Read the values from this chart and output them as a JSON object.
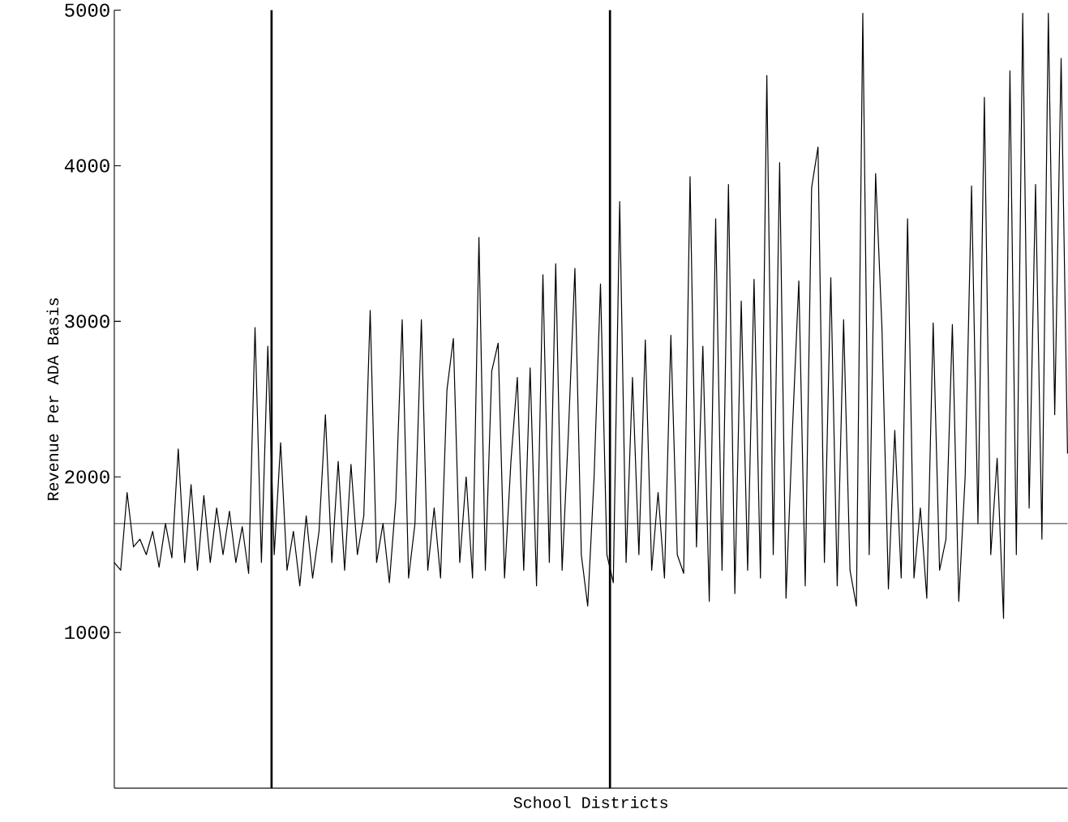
{
  "chart_data": {
    "type": "line",
    "xlabel": "School Districts",
    "ylabel": "Revenue Per ADA Basis",
    "categories": [
      null,
      null,
      null,
      null,
      null,
      null,
      null,
      null,
      null,
      null,
      null,
      null,
      null,
      null,
      null,
      null,
      null,
      null,
      null,
      null,
      null,
      null,
      null,
      null,
      null,
      null,
      null,
      null,
      null,
      null,
      null,
      null,
      null,
      null,
      null,
      null,
      null,
      null,
      null,
      null,
      null,
      null,
      null,
      null,
      null,
      null,
      null,
      null,
      null,
      null,
      null,
      null,
      null,
      null,
      null,
      null,
      null,
      null,
      null,
      null,
      null,
      null,
      null,
      null,
      null,
      null,
      null,
      null,
      null,
      null,
      null,
      null,
      null,
      null,
      null,
      null,
      null,
      null,
      null,
      null,
      null,
      null,
      null,
      null,
      null,
      null,
      null,
      null,
      null,
      null,
      null,
      null,
      null,
      null,
      null,
      null,
      null,
      null,
      null,
      null,
      null,
      null,
      null,
      null,
      null,
      null,
      null,
      null,
      null,
      null,
      null,
      null,
      null,
      null,
      null,
      null,
      null,
      null,
      null,
      null,
      null,
      null,
      null,
      null,
      null,
      null,
      null,
      null,
      null,
      null,
      null,
      null,
      null,
      null,
      null,
      null,
      null,
      null,
      null,
      null,
      null,
      null,
      null,
      null,
      null,
      null,
      null,
      null,
      null,
      null
    ],
    "values": [
      1450,
      1400,
      1900,
      1550,
      1600,
      1500,
      1650,
      1420,
      1700,
      1480,
      2180,
      1450,
      1950,
      1400,
      1880,
      1450,
      1800,
      1500,
      1780,
      1450,
      1680,
      1380,
      2960,
      1450,
      2840,
      1500,
      2220,
      1400,
      1650,
      1300,
      1750,
      1350,
      1650,
      2400,
      1450,
      2100,
      1400,
      2080,
      1500,
      1750,
      3070,
      1450,
      1700,
      1320,
      1850,
      3010,
      1350,
      1700,
      3010,
      1400,
      1800,
      1350,
      2560,
      2890,
      1450,
      2000,
      1350,
      3540,
      1400,
      2680,
      2860,
      1350,
      2100,
      2640,
      1400,
      2700,
      1300,
      3300,
      1450,
      3370,
      1400,
      2300,
      3340,
      1500,
      1170,
      2000,
      3240,
      1500,
      1320,
      3770,
      1450,
      2640,
      1500,
      2880,
      1400,
      1900,
      1350,
      2910,
      1500,
      1380,
      3930,
      1550,
      2840,
      1200,
      3660,
      1400,
      3880,
      1250,
      3130,
      1400,
      3270,
      1350,
      4580,
      1500,
      4020,
      1220,
      2300,
      3260,
      1300,
      3860,
      4120,
      1450,
      3280,
      1300,
      3010,
      1400,
      1170,
      4980,
      1500,
      3950,
      2950,
      1280,
      2300,
      1350,
      3660,
      1350,
      1800,
      1220,
      2990,
      1400,
      1600,
      2980,
      1200,
      2000,
      3870,
      1700,
      4440,
      1500,
      2120,
      1090,
      4610,
      1500,
      4980,
      1800,
      3880,
      1600,
      4980,
      2400,
      4690,
      2150
    ],
    "color": "#000000",
    "ylim": [
      0,
      5000
    ],
    "yticks": [
      1000,
      2000,
      3000,
      4000,
      5000
    ],
    "tick_labels": "y",
    "ref_lines": [
      {
        "axis": "y",
        "value": 1700,
        "color": "#000000"
      }
    ]
  }
}
